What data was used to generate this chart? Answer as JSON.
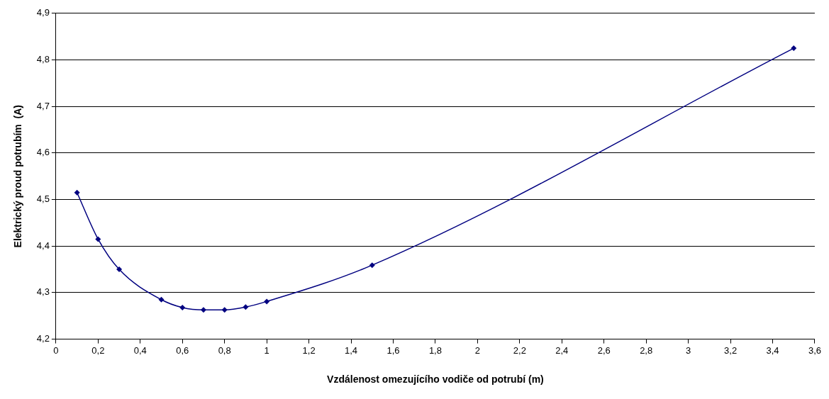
{
  "chart_data": {
    "type": "line",
    "xlabel": "Vzdálenost omezujícího vodiče od potrubí (m)",
    "ylabel": "Elektrický proud potrubím  (A)",
    "x": [
      0.1,
      0.2,
      0.3,
      0.5,
      0.6,
      0.7,
      0.8,
      0.9,
      1.0,
      1.5,
      3.5
    ],
    "series": [
      {
        "color": "#000080",
        "values": [
          4.515,
          4.415,
          4.35,
          4.285,
          4.268,
          4.263,
          4.263,
          4.269,
          4.281,
          4.359,
          4.825
        ]
      }
    ],
    "xlim": [
      0,
      3.6
    ],
    "xticks": [
      0,
      {
        "value": 0.2,
        "label": "0,2"
      },
      {
        "value": 0.4,
        "label": "0,4"
      },
      {
        "value": 0.6,
        "label": "0,6"
      },
      {
        "value": 0.8,
        "label": "0,8"
      },
      1,
      {
        "value": 1.2,
        "label": "1,2"
      },
      {
        "value": 1.4,
        "label": "1,4"
      },
      {
        "value": 1.6,
        "label": "1,6"
      },
      {
        "value": 1.8,
        "label": "1,8"
      },
      2,
      {
        "value": 2.2,
        "label": "2,2"
      },
      {
        "value": 2.4,
        "label": "2,4"
      },
      {
        "value": 2.6,
        "label": "2,6"
      },
      {
        "value": 2.8,
        "label": "2,8"
      },
      3,
      {
        "value": 3.2,
        "label": "3,2"
      },
      {
        "value": 3.4,
        "label": "3,4"
      },
      {
        "value": 3.6,
        "label": "3,6"
      }
    ],
    "ylim": [
      4.2,
      4.9
    ],
    "yticks": [
      {
        "value": 4.2,
        "label": "4,2"
      },
      {
        "value": 4.3,
        "label": "4,3"
      },
      {
        "value": 4.4,
        "label": "4,4"
      },
      {
        "value": 4.5,
        "label": "4,5"
      },
      {
        "value": 4.6,
        "label": "4,6"
      },
      {
        "value": 4.7,
        "label": "4,7"
      },
      {
        "value": 4.8,
        "label": "4,8"
      },
      {
        "value": 4.9,
        "label": "4,9"
      }
    ],
    "grid": "y",
    "marker": "diamond",
    "line_style": "solid",
    "legend": false
  }
}
